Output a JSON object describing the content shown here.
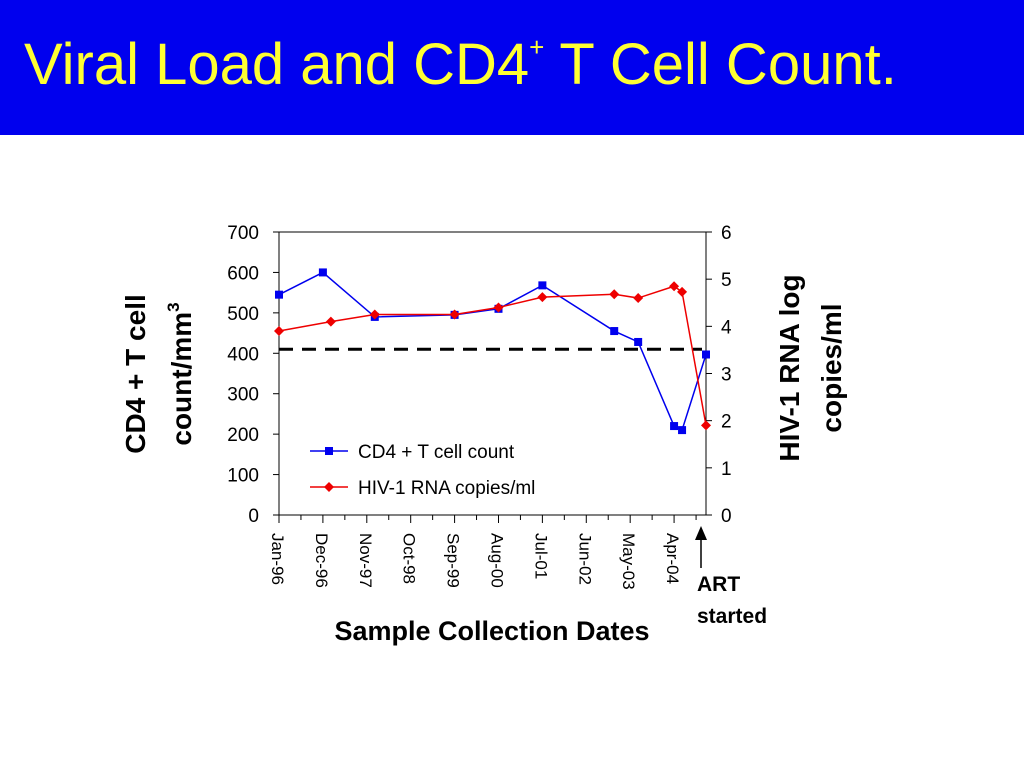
{
  "slide": {
    "title_main": "Viral Load and CD4",
    "title_sup": "+",
    "title_tail": " T Cell Count.",
    "title_bar_color": "#0000ee",
    "title_text_color": "#ffff33"
  },
  "chart_data": {
    "type": "line",
    "x_ticks": [
      "Jan-96",
      "Dec-96",
      "Nov-97",
      "Oct-98",
      "Sep-99",
      "Aug-00",
      "Jul-01",
      "Jun-02",
      "May-03",
      "Apr-04"
    ],
    "x_range": [
      "1996-01",
      "2004-12"
    ],
    "xlabel": "Sample Collection Dates",
    "ylabel_left": [
      "CD4 + T cell",
      "count/mm",
      "3"
    ],
    "ylabel_right": [
      "HIV-1 RNA log",
      "copies/ml"
    ],
    "ylim_left": [
      0,
      700
    ],
    "yticks_left": [
      0,
      100,
      200,
      300,
      400,
      500,
      600,
      700
    ],
    "ylim_right": [
      0,
      6
    ],
    "yticks_right": [
      0,
      1,
      2,
      3,
      4,
      5,
      6
    ],
    "grid": false,
    "legend_position": "lower-left inside plot",
    "series": [
      {
        "name": "CD4 + T cell count",
        "axis": "left",
        "color": "#0000ee",
        "marker": "square",
        "points": [
          {
            "x": "1996-01",
            "y": 545
          },
          {
            "x": "1996-12",
            "y": 600
          },
          {
            "x": "1998-01",
            "y": 490
          },
          {
            "x": "1999-09",
            "y": 495
          },
          {
            "x": "2000-08",
            "y": 510
          },
          {
            "x": "2001-07",
            "y": 568
          },
          {
            "x": "2003-01",
            "y": 455
          },
          {
            "x": "2003-07",
            "y": 428
          },
          {
            "x": "2004-04",
            "y": 220
          },
          {
            "x": "2004-06",
            "y": 210
          },
          {
            "x": "2004-12",
            "y": 397
          }
        ]
      },
      {
        "name": "HIV-1 RNA copies/ml",
        "axis": "right",
        "color": "#ee0000",
        "marker": "diamond",
        "points": [
          {
            "x": "1996-01",
            "y": 3.9
          },
          {
            "x": "1997-02",
            "y": 4.1
          },
          {
            "x": "1998-01",
            "y": 4.25
          },
          {
            "x": "1999-09",
            "y": 4.25
          },
          {
            "x": "2000-08",
            "y": 4.4
          },
          {
            "x": "2001-07",
            "y": 4.62
          },
          {
            "x": "2003-01",
            "y": 4.68
          },
          {
            "x": "2003-07",
            "y": 4.6
          },
          {
            "x": "2004-04",
            "y": 4.85
          },
          {
            "x": "2004-06",
            "y": 4.73
          },
          {
            "x": "2004-12",
            "y": 1.9
          }
        ]
      }
    ],
    "reference_line": {
      "axis": "left",
      "y": 410,
      "style": "dashed",
      "color": "#000000"
    },
    "annotation": {
      "lines": [
        "ART",
        "started"
      ],
      "x": "2004-12",
      "arrow": "up"
    }
  }
}
